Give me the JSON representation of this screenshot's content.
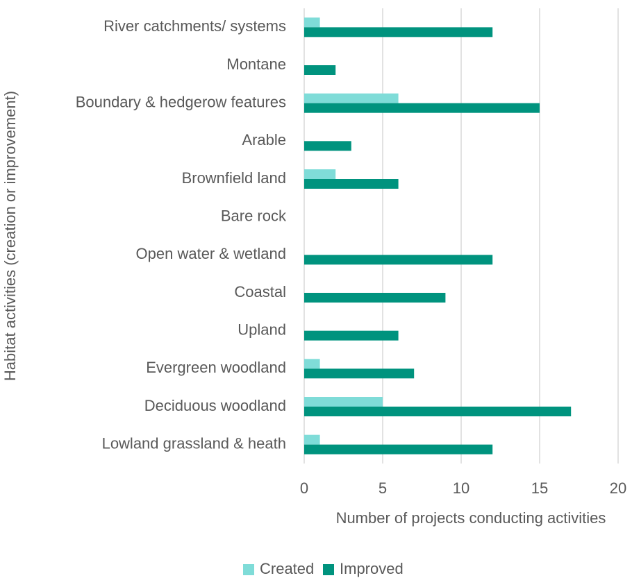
{
  "chart_data": {
    "type": "bar",
    "orientation": "horizontal",
    "x_label": "Number of projects conducting activities",
    "y_label": "Habitat activities (creation or improvement)",
    "categories": [
      "River catchments/ systems",
      "Montane",
      "Boundary & hedgerow features",
      "Arable",
      "Brownfield land",
      "Bare rock",
      "Open water & wetland",
      "Coastal",
      "Upland",
      "Evergreen woodland",
      "Deciduous woodland",
      "Lowland grassland & heath"
    ],
    "series": [
      {
        "name": "Created",
        "color": "#7fdcd8",
        "values": [
          1,
          0,
          6,
          0,
          2,
          0,
          0,
          0,
          0,
          1,
          5,
          1
        ]
      },
      {
        "name": "Improved",
        "color": "#00937e",
        "values": [
          12,
          2,
          15,
          3,
          6,
          0,
          12,
          9,
          6,
          7,
          17,
          12
        ]
      }
    ],
    "xlim": [
      0,
      20
    ],
    "xticks": [
      0,
      5,
      10,
      15,
      20
    ],
    "grid": true,
    "legend": "bottom"
  }
}
